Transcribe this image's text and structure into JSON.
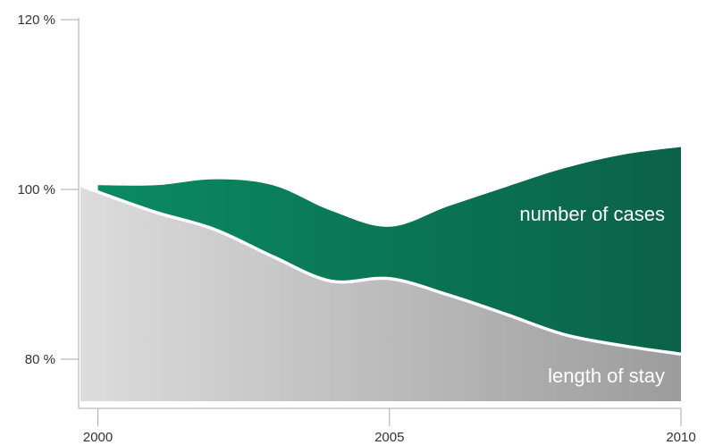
{
  "chart_data": {
    "type": "area",
    "x": [
      1999.7,
      2000,
      2001,
      2002,
      2003,
      2004,
      2005,
      2006,
      2007,
      2008,
      2009,
      2010
    ],
    "xlim": [
      1999.7,
      2010
    ],
    "ylim": [
      75,
      120
    ],
    "x_ticks": [
      {
        "value": 2000,
        "label": "2000"
      },
      {
        "value": 2005,
        "label": "2005"
      },
      {
        "value": 2010,
        "label": "2010"
      }
    ],
    "y_ticks": [
      {
        "value": 120,
        "label": "120 %"
      },
      {
        "value": 100,
        "label": "100 %"
      },
      {
        "value": 80,
        "label": "80 %"
      }
    ],
    "series": [
      {
        "name": "number of cases",
        "color": "#0f7a5c",
        "values": [
          100.5,
          100.5,
          100.5,
          101.2,
          100.5,
          97.5,
          95.6,
          98,
          100.3,
          102.5,
          104.1,
          105
        ]
      },
      {
        "name": "length of stay",
        "color": "#b9b9b9",
        "values": [
          100.5,
          99.7,
          97.3,
          95.3,
          92.1,
          89.2,
          89.5,
          87.6,
          85.3,
          82.9,
          81.6,
          80.6
        ]
      }
    ]
  }
}
